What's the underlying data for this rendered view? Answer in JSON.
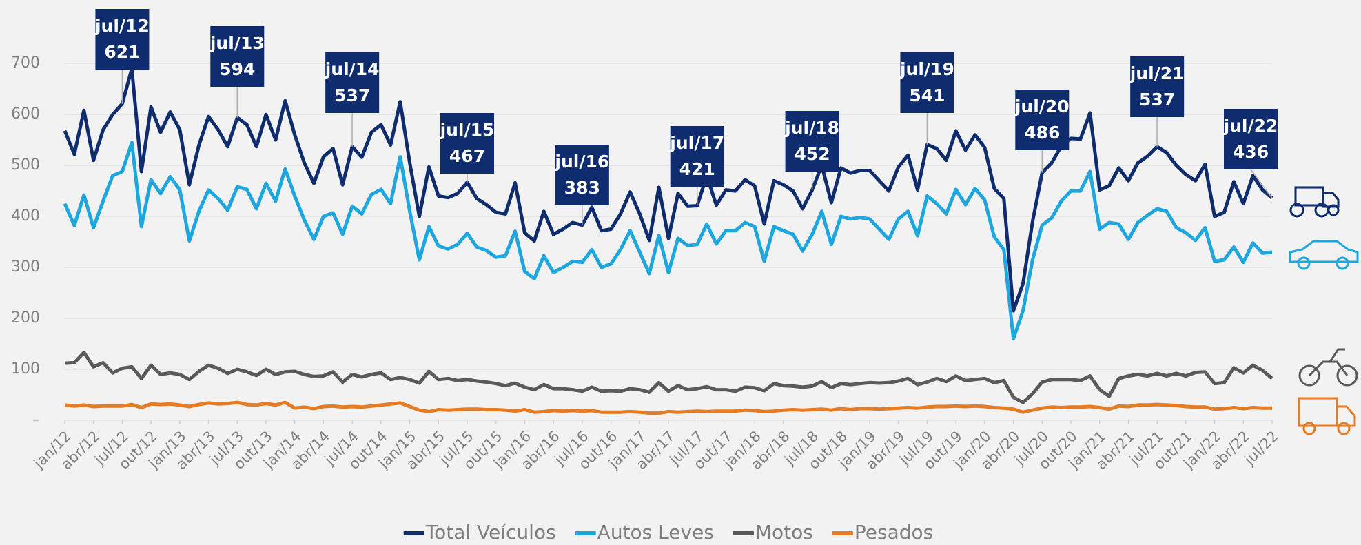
{
  "chart_data": {
    "type": "line",
    "categories": [
      "jan/12",
      null,
      null,
      "abr/12",
      null,
      null,
      "jul/12",
      null,
      null,
      "out/12",
      null,
      null,
      "jan/13",
      null,
      null,
      "abr/13",
      null,
      null,
      "jul/13",
      null,
      null,
      "out/13",
      null,
      null,
      "jan/14",
      null,
      null,
      "abr/14",
      null,
      null,
      "jul/14",
      null,
      null,
      "out/14",
      null,
      null,
      "jan/15",
      null,
      null,
      "abr/15",
      null,
      null,
      "jul/15",
      null,
      null,
      "out/15",
      null,
      null,
      "jan/16",
      null,
      null,
      "abr/16",
      null,
      null,
      "jul/16",
      null,
      null,
      "out/16",
      null,
      null,
      "jan/17",
      null,
      null,
      "abr/17",
      null,
      null,
      "jul/17",
      null,
      null,
      "out/17",
      null,
      null,
      "jan/18",
      null,
      null,
      "abr/18",
      null,
      null,
      "jul/18",
      null,
      null,
      "out/18",
      null,
      null,
      "jan/19",
      null,
      null,
      "abr/19",
      null,
      null,
      "jul/19",
      null,
      null,
      "out/19",
      null,
      null,
      "jan/20",
      null,
      null,
      "abr/20",
      null,
      null,
      "jul/20",
      null,
      null,
      "out/20",
      null,
      null,
      "jan/21",
      null,
      null,
      "abr/21",
      null,
      null,
      "jul/21",
      null,
      null,
      "out/21",
      null,
      null,
      "jan/22",
      null,
      null,
      "abr/22",
      null,
      null,
      "jul/22"
    ],
    "series": [
      {
        "name": "Total Veículos",
        "color": "#0e2c6e",
        "values": [
          568,
          522,
          608,
          510,
          570,
          600,
          621,
          690,
          488,
          615,
          565,
          605,
          570,
          462,
          540,
          596,
          570,
          537,
          594,
          580,
          537,
          600,
          550,
          627,
          560,
          505,
          465,
          517,
          533,
          462,
          537,
          516,
          565,
          580,
          540,
          625,
          505,
          400,
          497,
          440,
          437,
          445,
          467,
          435,
          423,
          408,
          405,
          466,
          368,
          352,
          410,
          365,
          375,
          388,
          383,
          418,
          372,
          375,
          405,
          448,
          405,
          353,
          457,
          357,
          445,
          420,
          421,
          480,
          422,
          452,
          450,
          472,
          460,
          385,
          470,
          462,
          450,
          415,
          452,
          500,
          427,
          495,
          485,
          490,
          490,
          470,
          450,
          497,
          520,
          452,
          541,
          533,
          510,
          568,
          530,
          560,
          535,
          455,
          435,
          215,
          268,
          390,
          486,
          505,
          538,
          553,
          552,
          603,
          452,
          460,
          495,
          470,
          505,
          518,
          537,
          525,
          500,
          482,
          470,
          502,
          400,
          408,
          468,
          425,
          480,
          452,
          436
        ]
      },
      {
        "name": "Autos Leves",
        "color": "#1ea7df",
        "values": [
          425,
          382,
          442,
          378,
          430,
          480,
          488,
          545,
          380,
          472,
          445,
          478,
          452,
          352,
          410,
          452,
          435,
          412,
          458,
          453,
          415,
          465,
          430,
          493,
          440,
          393,
          355,
          400,
          407,
          365,
          420,
          405,
          443,
          453,
          425,
          517,
          410,
          315,
          380,
          342,
          336,
          345,
          367,
          340,
          333,
          320,
          323,
          371,
          292,
          278,
          323,
          290,
          300,
          312,
          310,
          335,
          300,
          307,
          335,
          372,
          330,
          288,
          363,
          290,
          357,
          343,
          345,
          385,
          346,
          372,
          372,
          388,
          380,
          312,
          380,
          372,
          365,
          332,
          365,
          410,
          345,
          400,
          395,
          398,
          395,
          375,
          355,
          395,
          410,
          362,
          440,
          425,
          405,
          453,
          423,
          455,
          432,
          360,
          335,
          160,
          215,
          315,
          383,
          397,
          430,
          450,
          450,
          488,
          375,
          388,
          385,
          355,
          388,
          402,
          415,
          410,
          378,
          368,
          353,
          378,
          312,
          315,
          340,
          310,
          348,
          328,
          330
        ]
      },
      {
        "name": "Motos",
        "color": "#5a5a5a",
        "values": [
          112,
          113,
          133,
          105,
          113,
          93,
          102,
          105,
          82,
          108,
          90,
          93,
          90,
          80,
          96,
          108,
          102,
          92,
          100,
          95,
          88,
          100,
          90,
          95,
          96,
          90,
          86,
          87,
          95,
          75,
          90,
          85,
          90,
          93,
          80,
          84,
          80,
          73,
          96,
          80,
          82,
          78,
          80,
          77,
          75,
          72,
          68,
          73,
          65,
          60,
          70,
          62,
          62,
          60,
          57,
          65,
          57,
          58,
          57,
          62,
          60,
          55,
          74,
          57,
          68,
          60,
          62,
          66,
          60,
          60,
          57,
          65,
          64,
          58,
          72,
          68,
          67,
          65,
          67,
          76,
          64,
          72,
          70,
          72,
          74,
          73,
          74,
          77,
          82,
          70,
          75,
          82,
          76,
          87,
          78,
          80,
          82,
          74,
          78,
          45,
          35,
          52,
          75,
          80,
          80,
          80,
          78,
          87,
          60,
          47,
          82,
          87,
          90,
          87,
          92,
          87,
          92,
          87,
          94,
          95,
          72,
          74,
          103,
          93,
          108,
          98,
          82
        ]
      },
      {
        "name": "Pesados",
        "color": "#e57b22",
        "values": [
          30,
          28,
          30,
          27,
          28,
          28,
          28,
          31,
          25,
          32,
          31,
          32,
          30,
          27,
          31,
          34,
          32,
          33,
          35,
          31,
          30,
          33,
          30,
          35,
          24,
          26,
          23,
          27,
          28,
          26,
          27,
          26,
          28,
          30,
          32,
          34,
          27,
          20,
          17,
          21,
          20,
          21,
          22,
          22,
          21,
          21,
          20,
          18,
          21,
          16,
          17,
          19,
          18,
          19,
          18,
          19,
          16,
          16,
          16,
          17,
          16,
          14,
          14,
          17,
          16,
          17,
          18,
          17,
          18,
          18,
          18,
          20,
          19,
          17,
          18,
          20,
          21,
          20,
          21,
          22,
          20,
          23,
          21,
          23,
          23,
          22,
          23,
          24,
          25,
          24,
          26,
          27,
          27,
          28,
          27,
          28,
          27,
          25,
          24,
          22,
          16,
          20,
          24,
          26,
          25,
          26,
          26,
          27,
          25,
          22,
          28,
          27,
          30,
          30,
          31,
          30,
          29,
          27,
          26,
          26,
          22,
          23,
          25,
          23,
          25,
          24,
          24
        ]
      }
    ],
    "annotations": [
      {
        "label": "jul/12",
        "value": 621
      },
      {
        "label": "jul/13",
        "value": 594
      },
      {
        "label": "jul/14",
        "value": 537
      },
      {
        "label": "jul/15",
        "value": 467
      },
      {
        "label": "jul/16",
        "value": 383
      },
      {
        "label": "jul/17",
        "value": 421
      },
      {
        "label": "jul/18",
        "value": 452
      },
      {
        "label": "jul/19",
        "value": 541
      },
      {
        "label": "jul/20",
        "value": 486
      },
      {
        "label": "jul/21",
        "value": 537
      },
      {
        "label": "jul/22",
        "value": 436
      }
    ],
    "ylim": [
      0,
      780
    ],
    "yticks": [
      {
        "value": 0,
        "label": "–"
      },
      100,
      200,
      300,
      400,
      500,
      600,
      700
    ],
    "grid": true,
    "legend": "bottom"
  }
}
